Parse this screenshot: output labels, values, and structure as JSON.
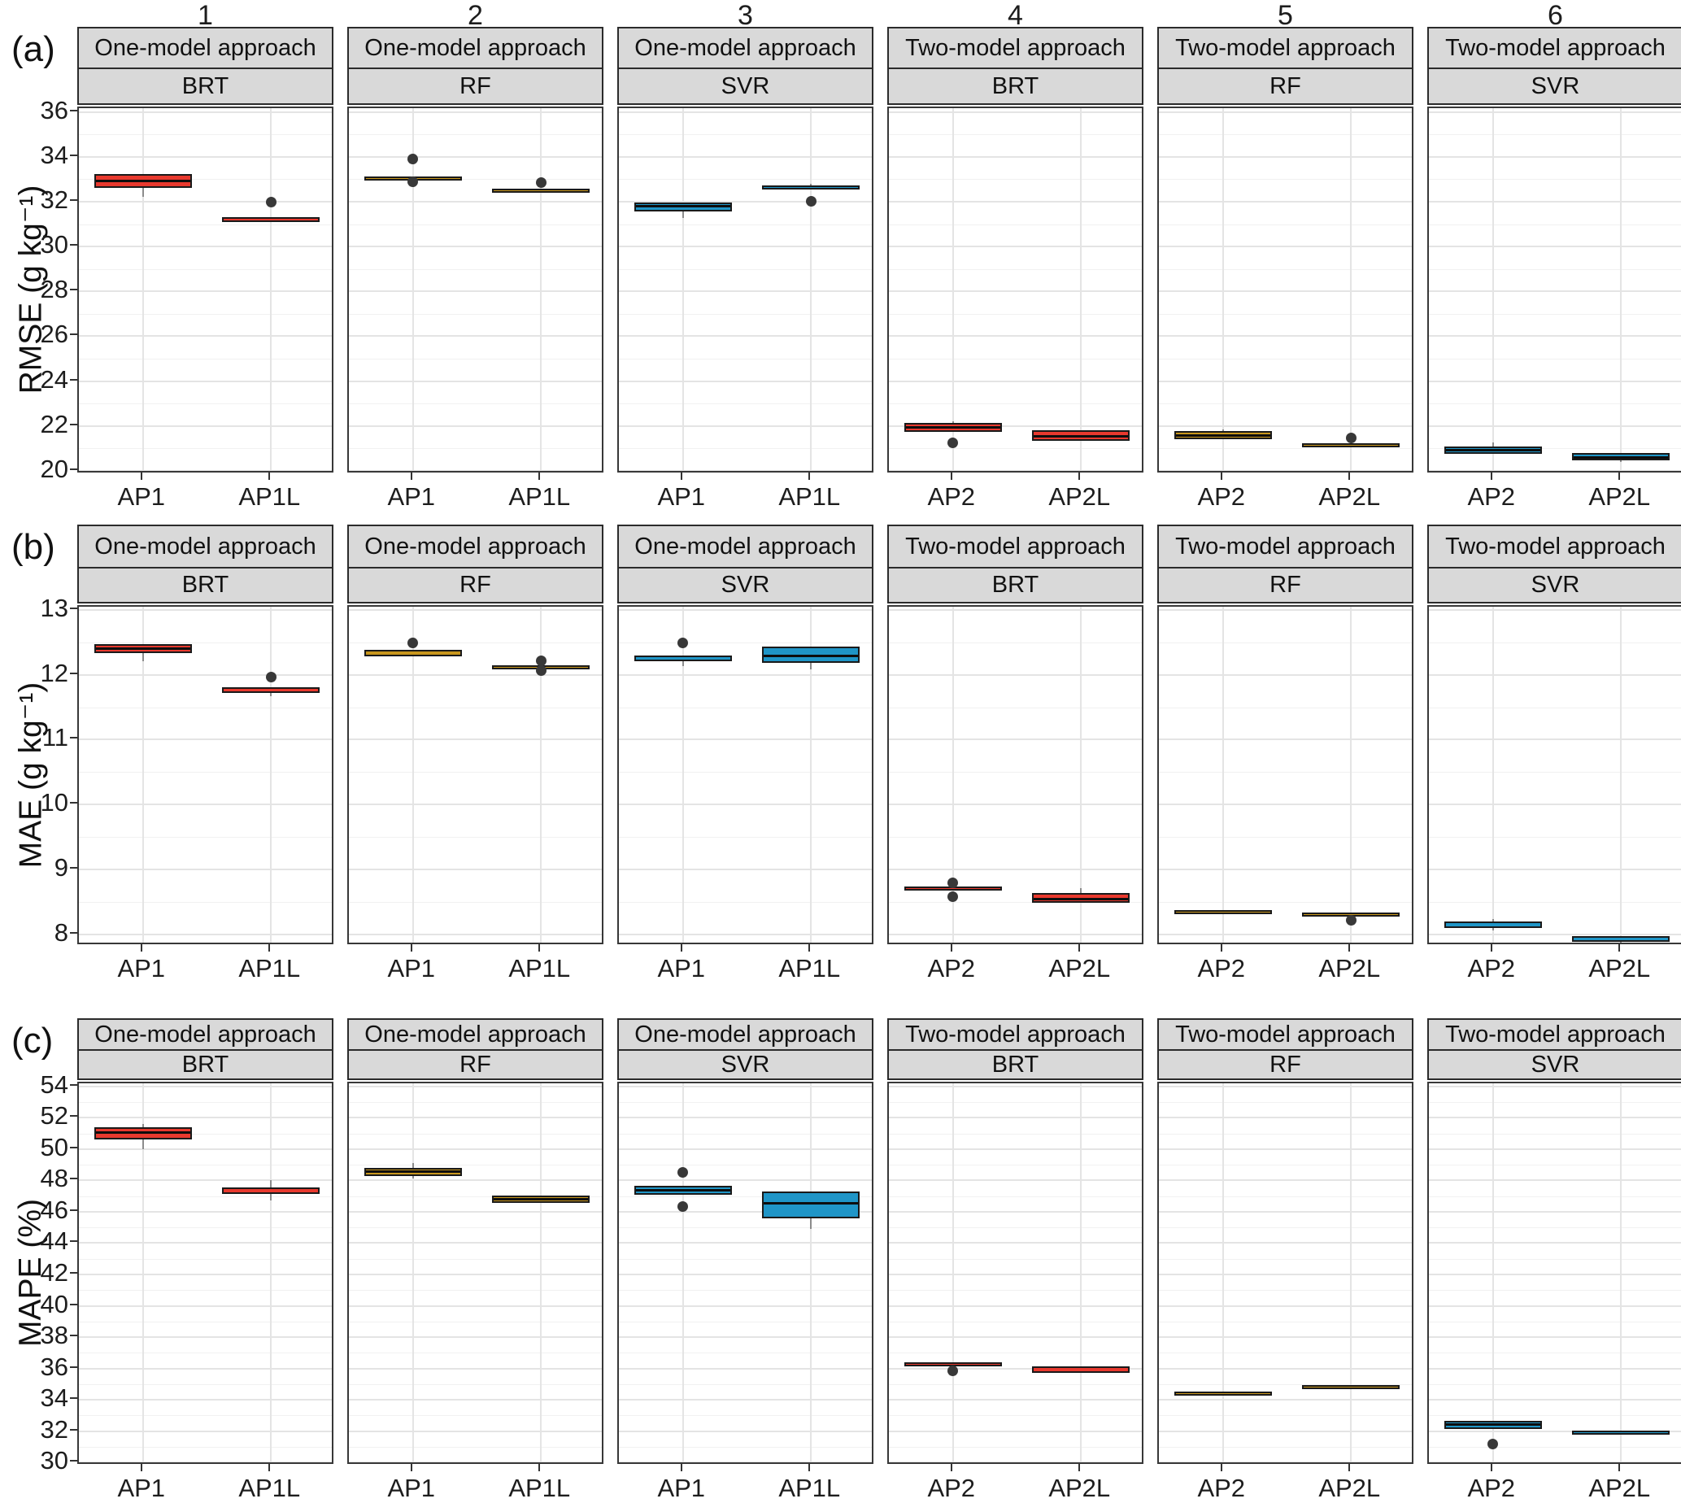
{
  "figure": {
    "column_numbers": [
      "1",
      "2",
      "3",
      "4",
      "5",
      "6"
    ],
    "panel_letters": [
      "(a)",
      "(b)",
      "(c)"
    ],
    "colors": {
      "red": "#E8392E",
      "yellow": "#C8961D",
      "blue": "#1F95C7",
      "strip_bg": "#D9D9D9",
      "panel_border": "#383838",
      "box_border": "#1A1A1A",
      "whisker": "#8C8C8C",
      "outlier": "#383838",
      "grid_major": "#E4E4E4",
      "grid_minor": "#F1F1F1"
    }
  },
  "chart_data": {
    "type": "boxplot",
    "grid": true,
    "columns": [
      {
        "number": "1",
        "approach": "One-model approach",
        "model": "BRT",
        "categories": [
          "AP1",
          "AP1L"
        ]
      },
      {
        "number": "2",
        "approach": "One-model approach",
        "model": "RF",
        "categories": [
          "AP1",
          "AP1L"
        ]
      },
      {
        "number": "3",
        "approach": "One-model approach",
        "model": "SVR",
        "categories": [
          "AP1",
          "AP1L"
        ]
      },
      {
        "number": "4",
        "approach": "Two-model approach",
        "model": "BRT",
        "categories": [
          "AP2",
          "AP2L"
        ]
      },
      {
        "number": "5",
        "approach": "Two-model approach",
        "model": "RF",
        "categories": [
          "AP2",
          "AP2L"
        ]
      },
      {
        "number": "6",
        "approach": "Two-model approach",
        "model": "SVR",
        "categories": [
          "AP2",
          "AP2L"
        ]
      }
    ],
    "rows": [
      {
        "letter": "(a)",
        "ylabel": "RMSE (g kg⁻¹)",
        "ylim": [
          19.85,
          36.17
        ],
        "yticks": [
          20,
          22,
          24,
          26,
          28,
          30,
          32,
          34,
          36
        ],
        "minor_step": 1,
        "panels": [
          [
            {
              "label": "AP1",
              "color": "red",
              "q1": 32.6,
              "median": 32.95,
              "q3": 33.25,
              "whisker_low": 32.2,
              "outliers": []
            },
            {
              "label": "AP1L",
              "color": "red",
              "q1": 31.1,
              "median": 31.2,
              "q3": 31.3,
              "outliers": [
                31.98
              ]
            }
          ],
          [
            {
              "label": "AP1",
              "color": "yellow",
              "q1": 33.03,
              "median": 33.08,
              "q3": 33.13,
              "outliers": [
                33.9,
                32.88
              ]
            },
            {
              "label": "AP1L",
              "color": "yellow",
              "q1": 32.42,
              "median": 32.5,
              "q3": 32.58,
              "outliers": [
                32.85
              ]
            }
          ],
          [
            {
              "label": "AP1",
              "color": "blue",
              "q1": 31.55,
              "median": 31.8,
              "q3": 31.97,
              "whisker_low": 31.28,
              "outliers": []
            },
            {
              "label": "AP1L",
              "color": "blue",
              "q1": 32.55,
              "median": 32.63,
              "q3": 32.72,
              "whisker_high": 32.78,
              "outliers": [
                32.0
              ]
            }
          ],
          [
            {
              "label": "AP2",
              "color": "red",
              "q1": 21.72,
              "median": 21.95,
              "q3": 22.12,
              "whisker_high": 22.2,
              "outliers": [
                21.25
              ]
            },
            {
              "label": "AP2L",
              "color": "red",
              "q1": 21.33,
              "median": 21.57,
              "q3": 21.8,
              "outliers": []
            }
          ],
          [
            {
              "label": "AP2",
              "color": "yellow",
              "q1": 21.4,
              "median": 21.6,
              "q3": 21.78,
              "whisker_high": 21.85,
              "outliers": []
            },
            {
              "label": "AP2L",
              "color": "yellow",
              "q1": 21.17,
              "median": 21.2,
              "q3": 21.23,
              "outliers": [
                21.45
              ]
            }
          ],
          [
            {
              "label": "AP2",
              "color": "blue",
              "q1": 20.75,
              "median": 20.92,
              "q3": 21.08,
              "whisker_high": 21.27,
              "outliers": []
            },
            {
              "label": "AP2L",
              "color": "blue",
              "q1": 20.45,
              "median": 20.62,
              "q3": 20.78,
              "whisker_low": 20.38,
              "outliers": []
            }
          ]
        ]
      },
      {
        "letter": "(b)",
        "ylabel": "MAE (g kg⁻¹)",
        "ylim": [
          7.82,
          13.05
        ],
        "yticks": [
          8,
          9,
          10,
          11,
          12,
          13
        ],
        "minor_step": 0.5,
        "panels": [
          [
            {
              "label": "AP1",
              "color": "red",
              "q1": 12.33,
              "median": 12.41,
              "q3": 12.47,
              "whisker_low": 12.21,
              "outliers": []
            },
            {
              "label": "AP1L",
              "color": "red",
              "q1": 11.72,
              "median": 11.77,
              "q3": 11.81,
              "whisker_low": 11.67,
              "outliers": [
                11.97
              ]
            }
          ],
          [
            {
              "label": "AP1",
              "color": "yellow",
              "q1": 12.29,
              "median": 12.34,
              "q3": 12.38,
              "outliers": [
                12.49
              ]
            },
            {
              "label": "AP1L",
              "color": "yellow",
              "q1": 12.11,
              "median": 12.13,
              "q3": 12.15,
              "outliers": [
                12.21,
                12.06
              ]
            }
          ],
          [
            {
              "label": "AP1",
              "color": "blue",
              "q1": 12.21,
              "median": 12.25,
              "q3": 12.3,
              "whisker_low": 12.13,
              "outliers": [
                12.49
              ]
            },
            {
              "label": "AP1L",
              "color": "blue",
              "q1": 12.19,
              "median": 12.3,
              "q3": 12.43,
              "whisker_low": 12.08,
              "outliers": []
            }
          ],
          [
            {
              "label": "AP2",
              "color": "red",
              "q1": 8.7,
              "median": 8.72,
              "q3": 8.74,
              "outliers": [
                8.79,
                8.58
              ]
            },
            {
              "label": "AP2L",
              "color": "red",
              "q1": 8.48,
              "median": 8.55,
              "q3": 8.63,
              "whisker_high": 8.71,
              "outliers": []
            }
          ],
          [
            {
              "label": "AP2",
              "color": "yellow",
              "q1": 8.33,
              "median": 8.35,
              "q3": 8.37,
              "outliers": []
            },
            {
              "label": "AP2L",
              "color": "yellow",
              "q1": 8.29,
              "median": 8.31,
              "q3": 8.33,
              "outliers": [
                8.22
              ]
            }
          ],
          [
            {
              "label": "AP2",
              "color": "blue",
              "q1": 8.09,
              "median": 8.14,
              "q3": 8.19,
              "whisker_high": 8.24,
              "whisker_low": 8.06,
              "outliers": []
            },
            {
              "label": "AP2L",
              "color": "blue",
              "q1": 7.88,
              "median": 7.92,
              "q3": 7.97,
              "whisker_low": 7.85,
              "outliers": []
            }
          ]
        ]
      },
      {
        "letter": "(c)",
        "ylabel": "MAPE (%)",
        "ylim": [
          29.8,
          54.2
        ],
        "yticks": [
          30,
          32,
          34,
          36,
          38,
          40,
          42,
          44,
          46,
          48,
          50,
          52,
          54
        ],
        "minor_step": 1,
        "panels": [
          [
            {
              "label": "AP1",
              "color": "red",
              "q1": 50.6,
              "median": 51.1,
              "q3": 51.4,
              "whisker_low": 50.0,
              "whisker_high": 51.6,
              "outliers": []
            },
            {
              "label": "AP1L",
              "color": "red",
              "q1": 47.15,
              "median": 47.35,
              "q3": 47.55,
              "whisker_low": 46.75,
              "whisker_high": 48.0,
              "outliers": []
            }
          ],
          [
            {
              "label": "AP1",
              "color": "yellow",
              "q1": 48.3,
              "median": 48.6,
              "q3": 48.8,
              "whisker_low": 48.1,
              "whisker_high": 49.1,
              "outliers": []
            },
            {
              "label": "AP1L",
              "color": "yellow",
              "q1": 46.55,
              "median": 46.85,
              "q3": 47.05,
              "outliers": []
            }
          ],
          [
            {
              "label": "AP1",
              "color": "blue",
              "q1": 47.1,
              "median": 47.4,
              "q3": 47.65,
              "outliers": [
                48.5,
                46.35
              ]
            },
            {
              "label": "AP1L",
              "color": "blue",
              "q1": 45.6,
              "median": 46.55,
              "q3": 47.3,
              "whisker_low": 44.9,
              "outliers": []
            }
          ],
          [
            {
              "label": "AP2",
              "color": "red",
              "q1": 36.25,
              "median": 36.32,
              "q3": 36.4,
              "outliers": [
                35.85
              ]
            },
            {
              "label": "AP2L",
              "color": "red",
              "q1": 35.7,
              "median": 35.95,
              "q3": 36.15,
              "outliers": []
            }
          ],
          [
            {
              "label": "AP2",
              "color": "yellow",
              "q1": 34.42,
              "median": 34.5,
              "q3": 34.55,
              "outliers": []
            },
            {
              "label": "AP2L",
              "color": "yellow",
              "q1": 34.8,
              "median": 34.87,
              "q3": 34.93,
              "outliers": []
            }
          ],
          [
            {
              "label": "AP2",
              "color": "blue",
              "q1": 32.15,
              "median": 32.45,
              "q3": 32.65,
              "outliers": [
                31.2
              ]
            },
            {
              "label": "AP2L",
              "color": "blue",
              "q1": 31.75,
              "median": 31.95,
              "q3": 32.05,
              "outliers": []
            }
          ]
        ]
      }
    ]
  }
}
